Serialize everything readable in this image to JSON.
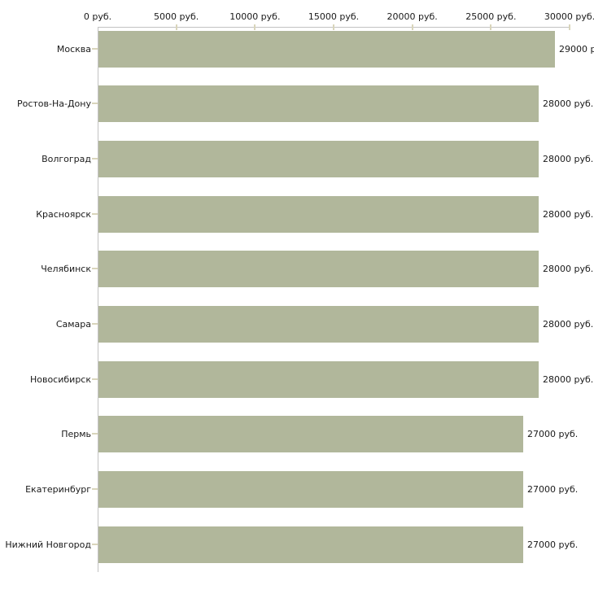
{
  "chart_data": {
    "type": "bar",
    "orientation": "horizontal",
    "title": "",
    "categories": [
      "Москва",
      "Ростов-На-Дону",
      "Волгоград",
      "Красноярск",
      "Челябинск",
      "Самара",
      "Новосибирск",
      "Пермь",
      "Екатеринбург",
      "Нижний Новгород"
    ],
    "values": [
      29000,
      28000,
      28000,
      28000,
      28000,
      28000,
      28000,
      27000,
      27000,
      27000
    ],
    "value_labels": [
      "29000 р",
      "28000 руб.",
      "28000 руб.",
      "28000 руб.",
      "28000 руб.",
      "28000 руб.",
      "28000 руб.",
      "27000 руб.",
      "27000 руб.",
      "27000 руб."
    ],
    "x_axis": {
      "position": "top",
      "xlim": [
        0,
        30000
      ],
      "tick_values": [
        0,
        5000,
        10000,
        15000,
        20000,
        25000,
        30000
      ],
      "tick_labels": [
        "0 руб.",
        "5000 руб.",
        "10000 руб.",
        "15000 руб.",
        "20000 руб.",
        "25000 руб.",
        "30000 руб."
      ]
    },
    "grid": false,
    "legend": false,
    "colors": {
      "bar": "#b1b79b",
      "axis_line": "#c3c3c3",
      "tick_mark": "#d9d5bb",
      "text": "#1a1a1a",
      "background": "#ffffff"
    }
  }
}
